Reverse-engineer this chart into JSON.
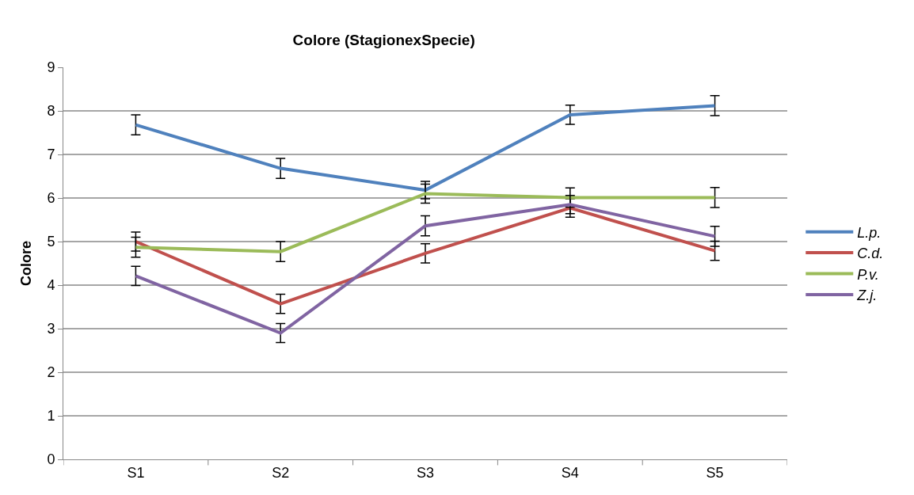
{
  "chart_data": {
    "type": "line",
    "title": "Colore (StagionexSpecie)",
    "ylabel": "Colore",
    "categories": [
      "S1",
      "S2",
      "S3",
      "S4",
      "S5"
    ],
    "series": [
      {
        "name": "L.p.",
        "color": "#4f81bd",
        "values": [
          7.68,
          6.68,
          6.18,
          7.91,
          8.12
        ],
        "errors": [
          0.23,
          0.23,
          0.2,
          0.22,
          0.23
        ]
      },
      {
        "name": "C.d.",
        "color": "#c0504d",
        "values": [
          5.0,
          3.57,
          4.73,
          5.77,
          4.79
        ],
        "errors": [
          0.22,
          0.22,
          0.22,
          0.21,
          0.22
        ]
      },
      {
        "name": "P.v.",
        "color": "#9bbb59",
        "values": [
          4.87,
          4.77,
          6.1,
          6.01,
          6.01
        ],
        "errors": [
          0.23,
          0.23,
          0.22,
          0.22,
          0.23
        ]
      },
      {
        "name": "Z.j.",
        "color": "#8064a2",
        "values": [
          4.21,
          2.9,
          5.36,
          5.85,
          5.12
        ],
        "errors": [
          0.22,
          0.22,
          0.23,
          0.21,
          0.23
        ]
      }
    ],
    "ylim": [
      0,
      9
    ],
    "yticks": [
      0,
      1,
      2,
      3,
      4,
      5,
      6,
      7,
      8,
      9
    ],
    "grid": "y",
    "legend": "right",
    "marker": "none",
    "line_style": "solid"
  }
}
